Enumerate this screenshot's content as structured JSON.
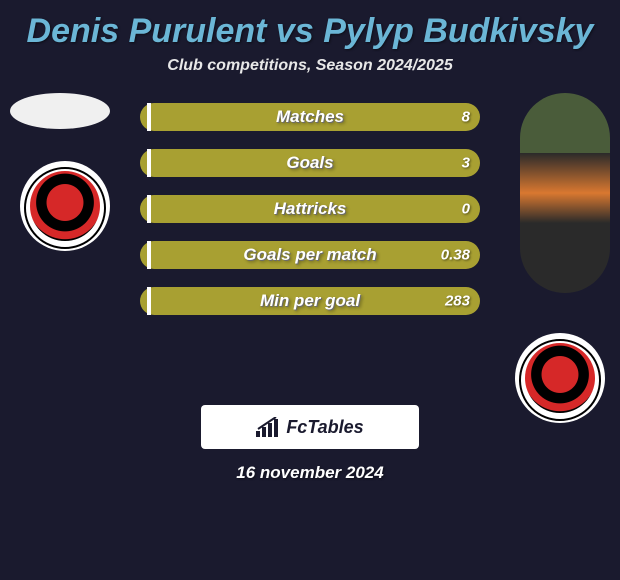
{
  "title": {
    "player1": "Denis Purulent",
    "vs": "vs",
    "player2": "Pylyp Budkivsky",
    "color": "#6bb6d6"
  },
  "subtitle": "Club competitions, Season 2024/2025",
  "bars": [
    {
      "label": "Matches",
      "left": "",
      "right": "8",
      "left_pct": 2,
      "right_pct": 98
    },
    {
      "label": "Goals",
      "left": "",
      "right": "3",
      "left_pct": 2,
      "right_pct": 98
    },
    {
      "label": "Hattricks",
      "left": "",
      "right": "0",
      "left_pct": 2,
      "right_pct": 98
    },
    {
      "label": "Goals per match",
      "left": "",
      "right": "0.38",
      "left_pct": 2,
      "right_pct": 98
    },
    {
      "label": "Min per goal",
      "left": "",
      "right": "283",
      "left_pct": 2,
      "right_pct": 98
    }
  ],
  "colors": {
    "background": "#1a1a2e",
    "bar_fill": "#a8a032",
    "bar_separator": "#ffffff",
    "text": "#ffffff"
  },
  "brand": "FcTables",
  "date": "16 november 2024"
}
